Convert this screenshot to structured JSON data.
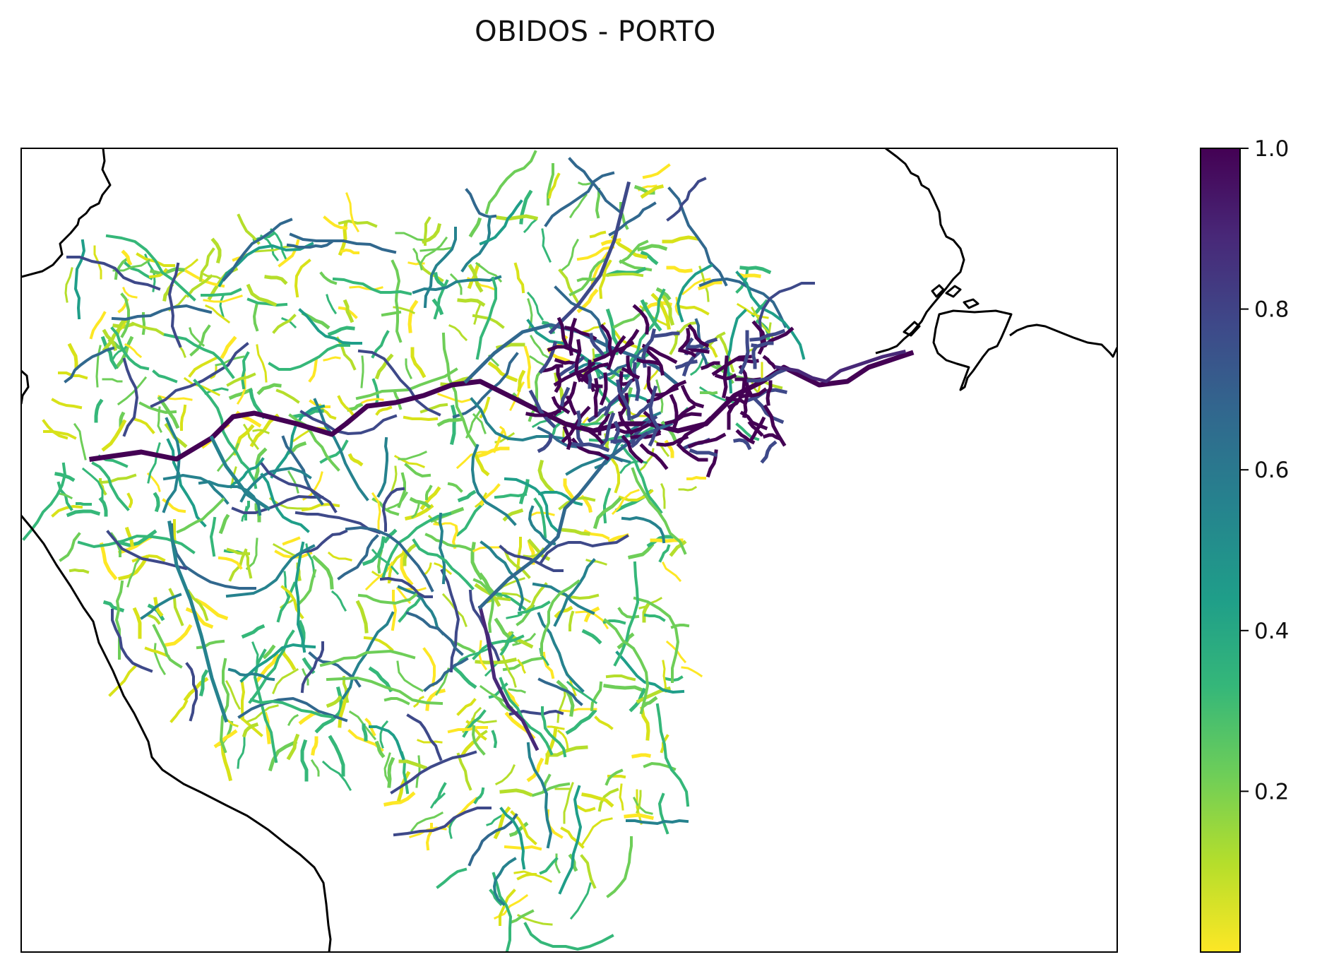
{
  "title": "OBIDOS - PORTO",
  "map": {
    "colormap": "viridis (reversed)",
    "features": [
      "coastline",
      "river-network"
    ]
  },
  "colorbar": {
    "min": 0.0,
    "max": 1.0,
    "ticks": [
      "1.0",
      "0.8",
      "0.6",
      "0.4",
      "0.2"
    ],
    "colors": [
      "#fde725",
      "#b5de2b",
      "#6ece58",
      "#35b779",
      "#1f9e89",
      "#26828e",
      "#31688e",
      "#3e4989",
      "#482878",
      "#440154"
    ]
  },
  "rivers": {
    "main_channel_color": "#440154",
    "tributary_colors": [
      "#3e4989",
      "#31688e",
      "#26828e",
      "#1f9e89",
      "#35b779",
      "#6ece58",
      "#b5de2b",
      "#d8e219",
      "#fde725"
    ]
  }
}
